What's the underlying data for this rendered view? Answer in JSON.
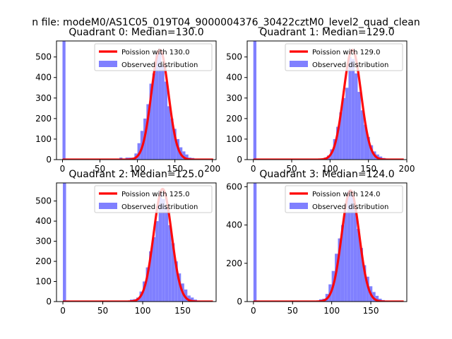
{
  "suptitle": "n file: modeM0/AS1C05_019T04_9000004376_30422cztM0_level2_quad_clean",
  "colors": {
    "fit": "#ff0000",
    "hist": "#8080ff",
    "axis": "#000000",
    "bg": "#ffffff"
  },
  "chart_data": [
    {
      "type": "bar",
      "title": "Quadrant 0: Median=130.0",
      "xlim": [
        -8,
        205
      ],
      "ylim": [
        0,
        578
      ],
      "xticks": [
        0,
        50,
        100,
        150,
        200
      ],
      "yticks": [
        0,
        100,
        200,
        300,
        400,
        500
      ],
      "legend": {
        "position": "top-right",
        "entries": [
          "Poission with 130.0",
          "Observed distribution"
        ]
      },
      "fit_mean": 130.0,
      "fit_peak": 535,
      "fit_sigma": 11.4,
      "bin_width": 4,
      "bins": [
        [
          0,
          580
        ],
        [
          4,
          5
        ],
        [
          76,
          10
        ],
        [
          84,
          10
        ],
        [
          88,
          10
        ],
        [
          92,
          10
        ],
        [
          96,
          30
        ],
        [
          100,
          80
        ],
        [
          104,
          140
        ],
        [
          108,
          200
        ],
        [
          112,
          270
        ],
        [
          116,
          370
        ],
        [
          120,
          420
        ],
        [
          124,
          520
        ],
        [
          128,
          520
        ],
        [
          132,
          460
        ],
        [
          136,
          380
        ],
        [
          140,
          260
        ],
        [
          144,
          200
        ],
        [
          148,
          150
        ],
        [
          152,
          100
        ],
        [
          156,
          60
        ],
        [
          160,
          40
        ],
        [
          164,
          25
        ],
        [
          168,
          10
        ],
        [
          172,
          8
        ]
      ]
    },
    {
      "type": "bar",
      "title": "Quadrant 1: Median=129.0",
      "xlim": [
        -8,
        200
      ],
      "ylim": [
        0,
        578
      ],
      "xticks": [
        0,
        50,
        100,
        150,
        200
      ],
      "yticks": [
        0,
        100,
        200,
        300,
        400,
        500
      ],
      "legend": {
        "position": "top-right",
        "entries": [
          "Poission with 129.0",
          "Observed distribution"
        ]
      },
      "fit_mean": 129.0,
      "fit_peak": 535,
      "fit_sigma": 11.4,
      "bin_width": 4,
      "bins": [
        [
          0,
          580
        ],
        [
          4,
          5
        ],
        [
          92,
          10
        ],
        [
          96,
          20
        ],
        [
          100,
          50
        ],
        [
          104,
          100
        ],
        [
          108,
          160
        ],
        [
          112,
          230
        ],
        [
          116,
          300
        ],
        [
          120,
          350
        ],
        [
          124,
          500
        ],
        [
          128,
          490
        ],
        [
          132,
          420
        ],
        [
          136,
          330
        ],
        [
          140,
          240
        ],
        [
          144,
          170
        ],
        [
          148,
          110
        ],
        [
          152,
          70
        ],
        [
          156,
          40
        ],
        [
          160,
          25
        ],
        [
          164,
          15
        ],
        [
          168,
          8
        ],
        [
          172,
          5
        ]
      ]
    },
    {
      "type": "bar",
      "title": "Quadrant 2: Median=125.0",
      "xlim": [
        -8,
        192
      ],
      "ylim": [
        0,
        590
      ],
      "xticks": [
        0,
        50,
        100,
        150
      ],
      "yticks": [
        0,
        100,
        200,
        300,
        400,
        500
      ],
      "legend": {
        "position": "top-right",
        "entries": [
          "Poission with 125.0",
          "Observed distribution"
        ]
      },
      "fit_mean": 125.0,
      "fit_peak": 560,
      "fit_sigma": 11.2,
      "bin_width": 4,
      "bins": [
        [
          0,
          590
        ],
        [
          4,
          5
        ],
        [
          84,
          10
        ],
        [
          88,
          12
        ],
        [
          92,
          20
        ],
        [
          96,
          50
        ],
        [
          100,
          100
        ],
        [
          104,
          170
        ],
        [
          108,
          250
        ],
        [
          112,
          320
        ],
        [
          116,
          400
        ],
        [
          120,
          550
        ],
        [
          124,
          510
        ],
        [
          128,
          470
        ],
        [
          132,
          380
        ],
        [
          136,
          290
        ],
        [
          140,
          200
        ],
        [
          144,
          140
        ],
        [
          148,
          90
        ],
        [
          152,
          60
        ],
        [
          156,
          30
        ],
        [
          160,
          20
        ],
        [
          164,
          10
        ],
        [
          168,
          5
        ]
      ]
    },
    {
      "type": "bar",
      "title": "Quadrant 3: Median=124.0",
      "xlim": [
        -8,
        196
      ],
      "ylim": [
        0,
        620
      ],
      "xticks": [
        0,
        50,
        100,
        150
      ],
      "yticks": [
        0,
        200,
        400,
        600
      ],
      "legend": {
        "position": "top-right",
        "entries": [
          "Poission with 124.0",
          "Observed distribution"
        ]
      },
      "fit_mean": 124.0,
      "fit_peak": 580,
      "fit_sigma": 11.2,
      "bin_width": 4,
      "bins": [
        [
          0,
          620
        ],
        [
          4,
          5
        ],
        [
          84,
          12
        ],
        [
          88,
          15
        ],
        [
          92,
          40
        ],
        [
          96,
          90
        ],
        [
          100,
          160
        ],
        [
          104,
          250
        ],
        [
          108,
          330
        ],
        [
          112,
          400
        ],
        [
          116,
          470
        ],
        [
          120,
          580
        ],
        [
          124,
          560
        ],
        [
          128,
          480
        ],
        [
          132,
          380
        ],
        [
          136,
          280
        ],
        [
          140,
          190
        ],
        [
          144,
          130
        ],
        [
          148,
          80
        ],
        [
          152,
          50
        ],
        [
          156,
          30
        ],
        [
          160,
          15
        ],
        [
          164,
          8
        ],
        [
          168,
          4
        ]
      ]
    }
  ]
}
